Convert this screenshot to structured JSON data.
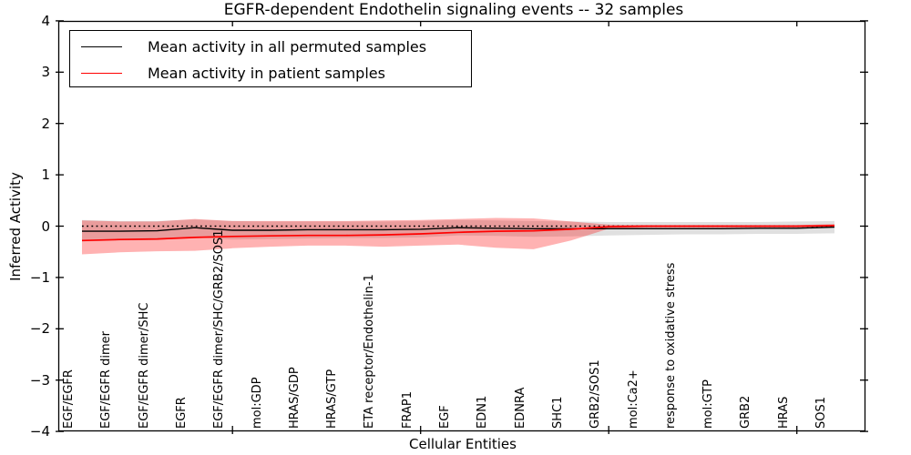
{
  "title": "EGFR-dependent Endothelin signaling events -- 32 samples",
  "chart_data": {
    "type": "line",
    "title": "EGFR-dependent Endothelin signaling events -- 32 samples",
    "xlabel": "Cellular Entities",
    "ylabel": "Inferred Activity",
    "ylim": [
      -4,
      4
    ],
    "yticks": [
      4,
      3,
      2,
      1,
      0,
      -1,
      -2,
      -3,
      -4
    ],
    "ytick_labels": [
      "4",
      "3",
      "2",
      "1",
      "0",
      "−1",
      "−2",
      "−3",
      "−4"
    ],
    "major_x_tick_indices": [
      4,
      9,
      14,
      19
    ],
    "grid": false,
    "legend_position": "upper left",
    "reference_line": {
      "y": 0,
      "style": "dotted",
      "color": "#000000"
    },
    "categories": [
      "EGF/EGFR",
      "EGF/EGFR dimer",
      "EGF/EGFR dimer/SHC",
      "EGFR",
      "EGF/EGFR dimer/SHC/GRB2/SOS1",
      "mol:GDP",
      "HRAS/GDP",
      "HRAS/GTP",
      "ETA receptor/Endothelin-1",
      "FRAP1",
      "EGF",
      "EDN1",
      "EDNRA",
      "SHC1",
      "GRB2/SOS1",
      "mol:Ca2+",
      "response to oxidative stress",
      "mol:GTP",
      "GRB2",
      "HRAS",
      "SOS1"
    ],
    "series": [
      {
        "name": "Mean activity in all permuted samples",
        "color": "#000000",
        "band_color": "#999999",
        "band_opacity": 0.3,
        "values": [
          -0.1,
          -0.1,
          -0.09,
          -0.03,
          -0.08,
          -0.08,
          -0.07,
          -0.07,
          -0.07,
          -0.06,
          -0.03,
          -0.04,
          -0.05,
          -0.05,
          -0.05,
          -0.05,
          -0.05,
          -0.05,
          -0.04,
          -0.04,
          -0.02
        ],
        "band_upper": [
          0.12,
          0.1,
          0.1,
          0.13,
          0.1,
          0.09,
          0.09,
          0.09,
          0.09,
          0.1,
          0.12,
          0.11,
          0.1,
          0.09,
          0.08,
          0.08,
          0.08,
          0.08,
          0.08,
          0.09,
          0.1
        ],
        "band_lower": [
          -0.3,
          -0.28,
          -0.27,
          -0.22,
          -0.26,
          -0.25,
          -0.24,
          -0.23,
          -0.23,
          -0.22,
          -0.18,
          -0.19,
          -0.21,
          -0.2,
          -0.18,
          -0.17,
          -0.16,
          -0.16,
          -0.15,
          -0.15,
          -0.14
        ]
      },
      {
        "name": "Mean activity in patient samples",
        "color": "#ff0000",
        "band_color": "#ff0000",
        "band_opacity": 0.3,
        "values": [
          -0.28,
          -0.26,
          -0.25,
          -0.22,
          -0.2,
          -0.19,
          -0.18,
          -0.18,
          -0.17,
          -0.15,
          -0.12,
          -0.1,
          -0.09,
          -0.06,
          -0.01,
          0.0,
          0.0,
          0.0,
          0.0,
          0.0,
          0.01
        ],
        "band_upper": [
          0.11,
          0.09,
          0.09,
          0.14,
          0.1,
          0.1,
          0.1,
          0.1,
          0.11,
          0.12,
          0.14,
          0.16,
          0.15,
          0.09,
          0.03,
          0.02,
          0.02,
          0.02,
          0.02,
          0.02,
          0.04
        ],
        "band_lower": [
          -0.55,
          -0.51,
          -0.49,
          -0.48,
          -0.43,
          -0.4,
          -0.38,
          -0.38,
          -0.4,
          -0.38,
          -0.36,
          -0.42,
          -0.45,
          -0.28,
          -0.05,
          -0.03,
          -0.03,
          -0.03,
          -0.03,
          -0.03,
          -0.02
        ]
      }
    ]
  }
}
